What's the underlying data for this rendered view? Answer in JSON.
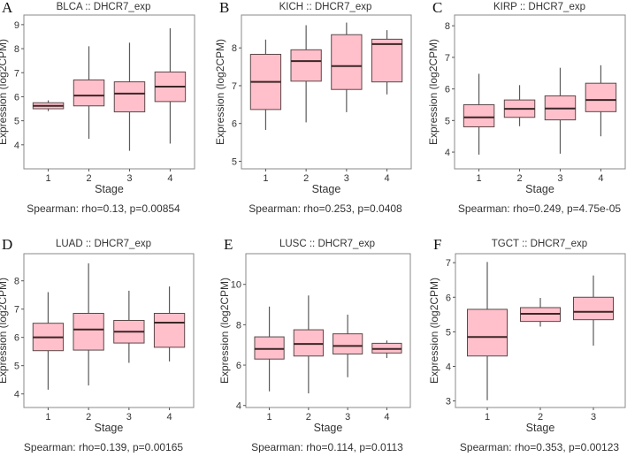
{
  "chart_data": [
    {
      "type": "box",
      "panel_label": "A",
      "title": "BLCA  ::  DHCR7_exp",
      "xlabel": "Stage",
      "ylabel": "Expression (log2CPM)",
      "categories": [
        "1",
        "2",
        "3",
        "4"
      ],
      "ylim": [
        3.0,
        9.4
      ],
      "yticks": [
        4,
        5,
        6,
        7,
        8,
        9
      ],
      "boxes": [
        {
          "min": 5.4,
          "q1": 5.5,
          "median": 5.62,
          "q3": 5.75,
          "max": 5.85
        },
        {
          "min": 4.25,
          "q1": 5.62,
          "median": 6.05,
          "q3": 6.7,
          "max": 8.1
        },
        {
          "min": 3.75,
          "q1": 5.37,
          "median": 6.13,
          "q3": 6.62,
          "max": 8.25
        },
        {
          "min": 4.05,
          "q1": 5.8,
          "median": 6.42,
          "q3": 7.03,
          "max": 8.85
        }
      ],
      "stat": "Spearman: rho=0.13, p=0.00854"
    },
    {
      "type": "box",
      "panel_label": "B",
      "title": "KICH  ::  DHCR7_exp",
      "xlabel": "Stage",
      "ylabel": "Expression (log2CPM)",
      "categories": [
        "1",
        "2",
        "3",
        "4"
      ],
      "ylim": [
        4.8,
        8.87
      ],
      "yticks": [
        5,
        6,
        7,
        8
      ],
      "boxes": [
        {
          "min": 5.83,
          "q1": 6.37,
          "median": 7.1,
          "q3": 7.83,
          "max": 8.22
        },
        {
          "min": 6.03,
          "q1": 7.12,
          "median": 7.65,
          "q3": 7.95,
          "max": 8.6
        },
        {
          "min": 6.3,
          "q1": 6.9,
          "median": 7.52,
          "q3": 8.35,
          "max": 8.67
        },
        {
          "min": 6.77,
          "q1": 7.1,
          "median": 8.1,
          "q3": 8.23,
          "max": 8.47
        }
      ],
      "stat": "Spearman: rho=0.253, p=0.0408"
    },
    {
      "type": "box",
      "panel_label": "C",
      "title": "KIRP  ::  DHCR7_exp",
      "xlabel": "Stage",
      "ylabel": "Expression (log2CPM)",
      "categories": [
        "1",
        "2",
        "3",
        "4"
      ],
      "ylim": [
        3.47,
        8.34
      ],
      "yticks": [
        4,
        5,
        6,
        7,
        8
      ],
      "boxes": [
        {
          "min": 3.92,
          "q1": 4.8,
          "median": 5.1,
          "q3": 5.5,
          "max": 6.48
        },
        {
          "min": 4.82,
          "q1": 5.1,
          "median": 5.37,
          "q3": 5.65,
          "max": 6.12
        },
        {
          "min": 3.95,
          "q1": 5.02,
          "median": 5.38,
          "q3": 5.78,
          "max": 6.67
        },
        {
          "min": 4.5,
          "q1": 5.28,
          "median": 5.65,
          "q3": 6.18,
          "max": 6.75
        }
      ],
      "stat": "Spearman: rho=0.249, p=4.75e-05"
    },
    {
      "type": "box",
      "panel_label": "D",
      "title": "LUAD  ::  DHCR7_exp",
      "xlabel": "Stage",
      "ylabel": "Expression (log2CPM)",
      "categories": [
        "1",
        "2",
        "3",
        "4"
      ],
      "ylim": [
        3.52,
        8.96
      ],
      "yticks": [
        4,
        5,
        6,
        7,
        8
      ],
      "boxes": [
        {
          "min": 4.15,
          "q1": 5.53,
          "median": 6.0,
          "q3": 6.5,
          "max": 7.6
        },
        {
          "min": 4.3,
          "q1": 5.55,
          "median": 6.28,
          "q3": 6.85,
          "max": 8.62
        },
        {
          "min": 5.1,
          "q1": 5.8,
          "median": 6.2,
          "q3": 6.6,
          "max": 7.65
        },
        {
          "min": 5.15,
          "q1": 5.65,
          "median": 6.52,
          "q3": 6.85,
          "max": 7.8
        }
      ],
      "stat": "Spearman: rho=0.139, p=0.00165"
    },
    {
      "type": "box",
      "panel_label": "E",
      "title": "LUSC  ::  DHCR7_exp",
      "xlabel": "Stage",
      "ylabel": "Expression (log2CPM)",
      "categories": [
        "1",
        "2",
        "3",
        "4"
      ],
      "ylim": [
        3.9,
        11.52
      ],
      "yticks": [
        4,
        6,
        8,
        10
      ],
      "boxes": [
        {
          "min": 4.7,
          "q1": 6.3,
          "median": 6.8,
          "q3": 7.4,
          "max": 8.9
        },
        {
          "min": 4.6,
          "q1": 6.45,
          "median": 7.05,
          "q3": 7.75,
          "max": 9.45
        },
        {
          "min": 5.4,
          "q1": 6.55,
          "median": 6.95,
          "q3": 7.55,
          "max": 8.5
        },
        {
          "min": 6.35,
          "q1": 6.6,
          "median": 6.8,
          "q3": 7.08,
          "max": 7.22
        }
      ],
      "stat": "Spearman: rho=0.114, p=0.0113"
    },
    {
      "type": "box",
      "panel_label": "F",
      "title": "TGCT  ::  DHCR7_exp",
      "xlabel": "Stage",
      "ylabel": "Expression (log2CPM)",
      "categories": [
        "1",
        "2",
        "3"
      ],
      "ylim": [
        2.81,
        7.26
      ],
      "yticks": [
        3,
        4,
        5,
        6,
        7
      ],
      "boxes": [
        {
          "min": 3.02,
          "q1": 4.3,
          "median": 4.85,
          "q3": 5.65,
          "max": 7.02
        },
        {
          "min": 5.15,
          "q1": 5.3,
          "median": 5.52,
          "q3": 5.7,
          "max": 5.98
        },
        {
          "min": 4.6,
          "q1": 5.35,
          "median": 5.58,
          "q3": 6.0,
          "max": 6.63
        }
      ],
      "stat": "Spearman: rho=0.353, p=0.00123"
    }
  ],
  "colors": {
    "box_fill": "#FFC0CB",
    "box_stroke": "#5a4848",
    "median": "#3a2626",
    "whisker": "#5a5a5a",
    "frame": "#8a8a8a"
  }
}
